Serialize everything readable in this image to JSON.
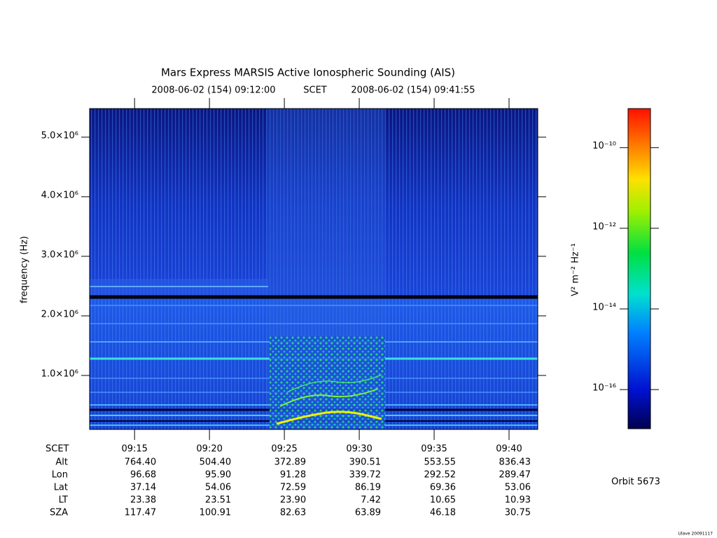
{
  "chart_data": {
    "type": "spectrogram",
    "title": "Mars Express MARSIS Active Ionospheric Sounding (AIS)",
    "time_label": "SCET",
    "xlim": [
      "2008-06-02 (154) 09:12:00",
      "2008-06-02 (154) 09:41:55"
    ],
    "xticks": [
      "09:15",
      "09:20",
      "09:25",
      "09:30",
      "09:35",
      "09:40"
    ],
    "y_label": "frequency (Hz)",
    "ylim": [
      94000,
      5480000
    ],
    "yticks": [
      {
        "value": 1000000,
        "label": "1.0×10⁶"
      },
      {
        "value": 2000000,
        "label": "2.0×10⁶"
      },
      {
        "value": 3000000,
        "label": "3.0×10⁶"
      },
      {
        "value": 4000000,
        "label": "4.0×10⁶"
      },
      {
        "value": 5000000,
        "label": "5.0×10⁶"
      }
    ],
    "colorbar": {
      "label": "V² m⁻² Hz⁻¹",
      "log": true,
      "lim": [
        1.07e-17,
        9.3e-10
      ],
      "ticks": [
        {
          "value": 1e-10,
          "label": "10⁻¹⁰"
        },
        {
          "value": 1e-12,
          "label": "10⁻¹²"
        },
        {
          "value": 1e-14,
          "label": "10⁻¹⁴"
        },
        {
          "value": 1e-16,
          "label": "10⁻¹⁶"
        }
      ]
    },
    "ephemeris": [
      {
        "label": "Alt",
        "values": [
          "764.40",
          "504.40",
          "372.89",
          "390.51",
          "553.55",
          "836.43"
        ]
      },
      {
        "label": "Lon",
        "values": [
          "96.68",
          "95.90",
          "91.28",
          "339.72",
          "292.52",
          "289.47"
        ]
      },
      {
        "label": "Lat",
        "values": [
          "37.14",
          "54.06",
          "72.59",
          "86.19",
          "69.36",
          "53.06"
        ]
      },
      {
        "label": "LT",
        "values": [
          "23.38",
          "23.51",
          "23.90",
          "7.42",
          "10.65",
          "10.93"
        ]
      },
      {
        "label": "SZA",
        "values": [
          "117.47",
          "100.91",
          "82.63",
          "63.89",
          "46.18",
          "30.75"
        ]
      }
    ],
    "orbit": "Orbit 5673",
    "footer": "Ulave 20091117"
  }
}
